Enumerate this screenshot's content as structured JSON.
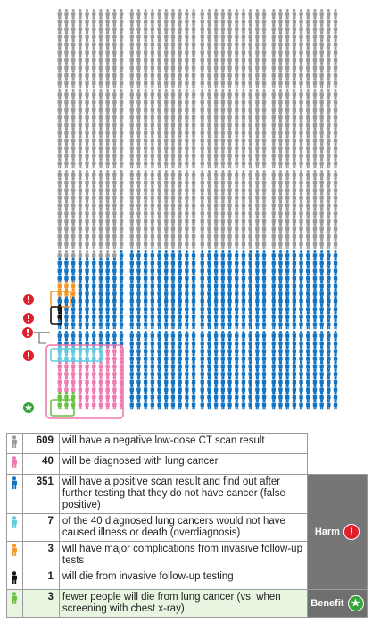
{
  "chart_data": {
    "type": "pictograph",
    "total_people": 1000,
    "categories": [
      {
        "key": "negative",
        "count": 609,
        "color": "#9b9b9b",
        "text": "will have a negative low-dose CT scan result",
        "group": ""
      },
      {
        "key": "diagnosed",
        "count": 40,
        "color": "#ef79b0",
        "text": "will be diagnosed with lung cancer",
        "group": ""
      },
      {
        "key": "false_positive",
        "count": 351,
        "color": "#1173c2",
        "text": "will have a positive scan result and find out after further testing that they do not have cancer (false positive)",
        "group": "harm"
      },
      {
        "key": "overdiagnosis",
        "count": 7,
        "color": "#63cbe0",
        "text": "of the 40 diagnosed lung cancers would not have caused illness or death (overdiagnosis)",
        "group": "harm"
      },
      {
        "key": "complications",
        "count": 3,
        "color": "#f39727",
        "text": "will have major complications from invasive follow-up tests",
        "group": "harm"
      },
      {
        "key": "death_followup",
        "count": 1,
        "color": "#111111",
        "text": "will die from invasive follow-up testing",
        "group": "harm"
      },
      {
        "key": "fewer_deaths",
        "count": 3,
        "color": "#6bc043",
        "text": "fewer people will die from lung cancer (vs. when screening with chest x-ray)",
        "group": "benefit"
      }
    ],
    "groups": {
      "harm": "Harm",
      "benefit": "Benefit"
    }
  },
  "legend": {
    "rows": [
      {
        "icon_color": "#9b9b9b",
        "num": "609",
        "text": "will have a negative low-dose CT scan result"
      },
      {
        "icon_color": "#ef79b0",
        "num": "40",
        "text": "will be diagnosed with lung cancer"
      },
      {
        "icon_color": "#1173c2",
        "num": "351",
        "text": "will have a positive scan result and find out after further testing that they do not have cancer (false positive)"
      },
      {
        "icon_color": "#63cbe0",
        "num": "7",
        "text": "of the 40 diagnosed lung cancers would not have caused illness or death (overdiagnosis)"
      },
      {
        "icon_color": "#f39727",
        "num": "3",
        "text": "will have major complications from invasive follow-up tests"
      },
      {
        "icon_color": "#111111",
        "num": "1",
        "text": "will die from invasive follow-up testing"
      },
      {
        "icon_color": "#6bc043",
        "num": "3",
        "text": "fewer people will die from lung cancer (vs. when screening with chest x-ray)"
      }
    ],
    "harm_label": "Harm",
    "benefit_label": "Benefit",
    "alert_icon": "exclamation-icon",
    "star_icon": "star-icon"
  },
  "colors": {
    "negative": "#9b9b9b",
    "diagnosed": "#ef79b0",
    "false_positive": "#1173c2",
    "overdiagnosis": "#63cbe0",
    "complications": "#f39727",
    "death": "#111111",
    "benefit": "#6bc043",
    "alert": "#e01f2d",
    "panel": "#767676"
  }
}
